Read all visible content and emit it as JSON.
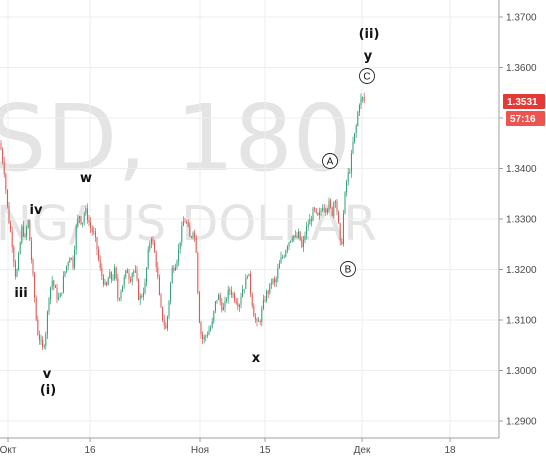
{
  "watermark": {
    "line1": "SD, 180",
    "line2": "NG/ US DOLLAR"
  },
  "chart_data": {
    "type": "candlestick",
    "y_ticks": [
      "1.3700",
      "1.3600",
      "1.3500",
      "1.3400",
      "1.3300",
      "1.3200",
      "1.3100",
      "1.3000",
      "1.2900"
    ],
    "ylim": [
      1.2875,
      1.3765
    ],
    "x_ticks": [
      "Окт",
      "16",
      "Ноя",
      "15",
      "Дек",
      "18"
    ],
    "last_price": "1.3531",
    "countdown": "57:16",
    "series_path": [
      [
        0,
        1.345
      ],
      [
        4,
        1.34
      ],
      [
        8,
        1.331
      ],
      [
        12,
        1.3255
      ],
      [
        16,
        1.318
      ],
      [
        19,
        1.323
      ],
      [
        22,
        1.3285
      ],
      [
        25,
        1.326
      ],
      [
        28,
        1.33
      ],
      [
        31,
        1.323
      ],
      [
        34,
        1.316
      ],
      [
        37,
        1.308
      ],
      [
        40,
        1.306
      ],
      [
        43,
        1.304
      ],
      [
        46,
        1.308
      ],
      [
        49,
        1.315
      ],
      [
        52,
        1.318
      ],
      [
        55,
        1.316
      ],
      [
        58,
        1.314
      ],
      [
        61,
        1.315
      ],
      [
        64,
        1.319
      ],
      [
        67,
        1.321
      ],
      [
        70,
        1.323
      ],
      [
        73,
        1.321
      ],
      [
        76,
        1.328
      ],
      [
        79,
        1.331
      ],
      [
        82,
        1.329
      ],
      [
        85,
        1.332
      ],
      [
        88,
        1.33
      ],
      [
        91,
        1.328
      ],
      [
        94,
        1.327
      ],
      [
        97,
        1.324
      ],
      [
        100,
        1.32
      ],
      [
        103,
        1.318
      ],
      [
        106,
        1.316
      ],
      [
        109,
        1.319
      ],
      [
        112,
        1.318
      ],
      [
        115,
        1.32
      ],
      [
        118,
        1.314
      ],
      [
        121,
        1.316
      ],
      [
        124,
        1.318
      ],
      [
        127,
        1.32
      ],
      [
        130,
        1.318
      ],
      [
        133,
        1.32
      ],
      [
        136,
        1.319
      ],
      [
        139,
        1.314
      ],
      [
        142,
        1.315
      ],
      [
        145,
        1.317
      ],
      [
        148,
        1.323
      ],
      [
        151,
        1.327
      ],
      [
        154,
        1.324
      ],
      [
        157,
        1.32
      ],
      [
        160,
        1.313
      ],
      [
        163,
        1.31
      ],
      [
        166,
        1.308
      ],
      [
        169,
        1.314
      ],
      [
        172,
        1.32
      ],
      [
        175,
        1.321
      ],
      [
        178,
        1.323
      ],
      [
        181,
        1.327
      ],
      [
        184,
        1.33
      ],
      [
        187,
        1.329
      ],
      [
        190,
        1.326
      ],
      [
        193,
        1.328
      ],
      [
        196,
        1.325
      ],
      [
        198,
        1.315
      ],
      [
        200,
        1.308
      ],
      [
        203,
        1.306
      ],
      [
        206,
        1.307
      ],
      [
        209,
        1.308
      ],
      [
        212,
        1.309
      ],
      [
        215,
        1.313
      ],
      [
        218,
        1.315
      ],
      [
        221,
        1.313
      ],
      [
        224,
        1.312
      ],
      [
        227,
        1.315
      ],
      [
        230,
        1.316
      ],
      [
        233,
        1.315
      ],
      [
        236,
        1.314
      ],
      [
        239,
        1.313
      ],
      [
        242,
        1.316
      ],
      [
        245,
        1.317
      ],
      [
        248,
        1.32
      ],
      [
        251,
        1.315
      ],
      [
        254,
        1.311
      ],
      [
        257,
        1.309
      ],
      [
        260,
        1.31
      ],
      [
        263,
        1.313
      ],
      [
        266,
        1.315
      ],
      [
        269,
        1.316
      ],
      [
        272,
        1.318
      ],
      [
        275,
        1.317
      ],
      [
        278,
        1.32
      ],
      [
        281,
        1.322
      ],
      [
        284,
        1.323
      ],
      [
        287,
        1.325
      ],
      [
        290,
        1.326
      ],
      [
        293,
        1.327
      ],
      [
        296,
        1.326
      ],
      [
        299,
        1.327
      ],
      [
        302,
        1.324
      ],
      [
        305,
        1.327
      ],
      [
        308,
        1.329
      ],
      [
        311,
        1.33
      ],
      [
        314,
        1.332
      ],
      [
        317,
        1.33
      ],
      [
        320,
        1.331
      ],
      [
        323,
        1.333
      ],
      [
        326,
        1.332
      ],
      [
        329,
        1.333
      ],
      [
        332,
        1.331
      ],
      [
        335,
        1.335
      ],
      [
        338,
        1.33
      ],
      [
        341,
        1.323
      ],
      [
        344,
        1.333
      ],
      [
        347,
        1.338
      ],
      [
        350,
        1.34
      ],
      [
        353,
        1.345
      ],
      [
        356,
        1.348
      ],
      [
        359,
        1.353
      ],
      [
        362,
        1.354
      ],
      [
        365,
        1.3531
      ]
    ],
    "annotations": [
      {
        "text": "(ii)",
        "kind": "wave"
      },
      {
        "text": "y",
        "kind": "wave"
      },
      {
        "text": "C",
        "kind": "circle"
      },
      {
        "text": "A",
        "kind": "circle"
      },
      {
        "text": "B",
        "kind": "circle"
      },
      {
        "text": "w",
        "kind": "wave"
      },
      {
        "text": "iv",
        "kind": "wave"
      },
      {
        "text": "iii",
        "kind": "wave"
      },
      {
        "text": "v",
        "kind": "wave"
      },
      {
        "text": "(i)",
        "kind": "wave"
      },
      {
        "text": "x",
        "kind": "wave"
      }
    ],
    "colors": {
      "up": "#2f9c73",
      "down": "#d9534f",
      "price_tag": "#e53935",
      "countdown_tag": "#ef5350",
      "grid": "#eeeeee",
      "axis": "#a0a0a0"
    }
  }
}
